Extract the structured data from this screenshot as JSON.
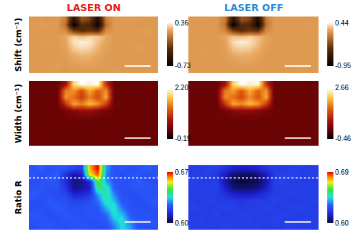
{
  "chart_data": [
    {
      "type": "heatmap",
      "title": "LASER ON",
      "ylabel": "Shift (cm⁻¹)",
      "tick_labels": false,
      "colorbar": {
        "range": [
          -0.73,
          0.36
        ],
        "ticks": [
          -0.73,
          0.36
        ]
      },
      "cells": [
        [
          0.15,
          0.15,
          0.14,
          0.15,
          0.05,
          -0.55,
          -0.1,
          -0.2,
          -0.6,
          0.05,
          0.15,
          0.15,
          0.16,
          0.15,
          0.15,
          0.15
        ],
        [
          0.15,
          0.16,
          0.15,
          0.15,
          0.0,
          -0.73,
          -0.3,
          -0.35,
          -0.7,
          0.0,
          0.15,
          0.15,
          0.15,
          0.14,
          0.15,
          0.15
        ],
        [
          0.15,
          0.15,
          0.15,
          0.14,
          0.1,
          -0.2,
          -0.3,
          -0.25,
          -0.3,
          0.1,
          0.15,
          0.15,
          0.15,
          0.15,
          0.16,
          0.15
        ],
        [
          0.15,
          0.15,
          0.15,
          0.15,
          0.2,
          0.3,
          0.25,
          0.3,
          0.28,
          0.2,
          0.15,
          0.15,
          0.15,
          0.15,
          0.15,
          0.15
        ],
        [
          0.15,
          0.15,
          0.16,
          0.15,
          0.18,
          0.33,
          0.36,
          0.34,
          0.25,
          0.18,
          0.15,
          0.15,
          0.15,
          0.15,
          0.15,
          0.15
        ],
        [
          0.15,
          0.15,
          0.15,
          0.15,
          0.17,
          0.28,
          0.32,
          0.3,
          0.22,
          0.17,
          0.15,
          0.15,
          0.15,
          0.16,
          0.15,
          0.15
        ],
        [
          0.15,
          0.14,
          0.15,
          0.15,
          0.16,
          0.22,
          0.25,
          0.24,
          0.2,
          0.16,
          0.15,
          0.15,
          0.15,
          0.15,
          0.15,
          0.15
        ],
        [
          0.15,
          0.15,
          0.15,
          0.15,
          0.15,
          0.18,
          0.2,
          0.2,
          0.17,
          0.15,
          0.15,
          0.15,
          0.15,
          0.15,
          0.15,
          0.15
        ],
        [
          0.15,
          0.15,
          0.15,
          0.16,
          0.15,
          0.16,
          0.17,
          0.17,
          0.16,
          0.15,
          0.15,
          0.15,
          0.15,
          0.15,
          0.14,
          0.15
        ],
        [
          0.15,
          0.15,
          0.15,
          0.15,
          0.14,
          0.15,
          0.15,
          0.15,
          0.15,
          0.15,
          0.16,
          0.15,
          0.15,
          0.15,
          0.15,
          0.15
        ]
      ]
    },
    {
      "type": "heatmap",
      "title": "LASER OFF",
      "tick_labels": false,
      "colorbar": {
        "range": [
          -0.95,
          0.44
        ],
        "ticks": [
          -0.95,
          0.44
        ]
      },
      "cells": [
        [
          0.17,
          0.17,
          0.17,
          0.17,
          0.05,
          -0.7,
          -0.15,
          -0.25,
          -0.8,
          0.05,
          0.17,
          0.17,
          0.16,
          0.17,
          0.17,
          0.17
        ],
        [
          0.17,
          0.16,
          0.17,
          0.17,
          0.0,
          -0.95,
          -0.4,
          -0.45,
          -0.9,
          0.0,
          0.17,
          0.17,
          0.17,
          0.17,
          0.18,
          0.17
        ],
        [
          0.17,
          0.17,
          0.17,
          0.18,
          0.1,
          -0.25,
          -0.4,
          -0.3,
          -0.35,
          0.1,
          0.17,
          0.17,
          0.17,
          0.17,
          0.17,
          0.17
        ],
        [
          0.17,
          0.17,
          0.17,
          0.17,
          0.22,
          0.32,
          0.3,
          0.35,
          0.3,
          0.22,
          0.17,
          0.17,
          0.17,
          0.16,
          0.17,
          0.17
        ],
        [
          0.17,
          0.17,
          0.16,
          0.17,
          0.2,
          0.38,
          0.44,
          0.4,
          0.3,
          0.2,
          0.17,
          0.17,
          0.17,
          0.17,
          0.17,
          0.17
        ],
        [
          0.17,
          0.17,
          0.17,
          0.17,
          0.19,
          0.32,
          0.36,
          0.34,
          0.26,
          0.19,
          0.17,
          0.17,
          0.18,
          0.17,
          0.17,
          0.17
        ],
        [
          0.17,
          0.18,
          0.17,
          0.17,
          0.18,
          0.25,
          0.28,
          0.27,
          0.22,
          0.18,
          0.17,
          0.17,
          0.17,
          0.17,
          0.17,
          0.17
        ],
        [
          0.17,
          0.17,
          0.17,
          0.17,
          0.17,
          0.2,
          0.22,
          0.22,
          0.19,
          0.17,
          0.17,
          0.17,
          0.17,
          0.17,
          0.17,
          0.17
        ],
        [
          0.17,
          0.17,
          0.17,
          0.16,
          0.17,
          0.18,
          0.19,
          0.19,
          0.18,
          0.17,
          0.17,
          0.17,
          0.17,
          0.17,
          0.18,
          0.17
        ],
        [
          0.17,
          0.17,
          0.17,
          0.17,
          0.17,
          0.17,
          0.17,
          0.17,
          0.17,
          0.17,
          0.16,
          0.17,
          0.17,
          0.17,
          0.17,
          0.17
        ]
      ]
    },
    {
      "type": "heatmap",
      "ylabel": "Width (cm⁻¹)",
      "tick_labels": false,
      "colorbar": {
        "range": [
          -0.19,
          2.2
        ],
        "ticks": [
          -0.19,
          {
            "value": 2.2,
            "label": "2.20"
          }
        ]
      },
      "cells": [
        [
          0.28,
          0.28,
          0.27,
          0.28,
          0.6,
          1.9,
          2.2,
          2.1,
          2.2,
          0.9,
          0.28,
          0.28,
          0.28,
          0.28,
          0.29,
          0.28
        ],
        [
          0.28,
          0.29,
          0.28,
          0.28,
          1.4,
          1.5,
          1.1,
          1.6,
          1.2,
          1.5,
          0.28,
          0.28,
          0.28,
          0.27,
          0.28,
          0.28
        ],
        [
          0.28,
          0.28,
          0.28,
          0.27,
          1.5,
          1.3,
          1.0,
          1.4,
          1.1,
          1.6,
          0.28,
          0.28,
          0.28,
          0.28,
          0.28,
          0.28
        ],
        [
          0.28,
          0.28,
          0.28,
          0.28,
          0.9,
          1.6,
          1.4,
          1.7,
          1.5,
          1.0,
          0.28,
          0.29,
          0.28,
          0.28,
          0.28,
          0.28
        ],
        [
          0.28,
          0.27,
          0.28,
          0.28,
          0.35,
          0.5,
          0.6,
          0.6,
          0.5,
          0.35,
          0.28,
          0.28,
          0.28,
          0.28,
          0.28,
          0.28
        ],
        [
          0.28,
          0.28,
          0.28,
          0.28,
          0.3,
          0.32,
          0.35,
          0.35,
          0.32,
          0.3,
          0.28,
          0.28,
          0.28,
          0.28,
          0.27,
          0.28
        ],
        [
          0.28,
          0.28,
          0.29,
          0.28,
          0.28,
          0.28,
          0.28,
          0.28,
          0.28,
          0.28,
          0.28,
          0.28,
          0.28,
          0.28,
          0.28,
          0.28
        ],
        [
          0.28,
          0.28,
          0.28,
          0.28,
          0.28,
          0.27,
          0.28,
          0.28,
          0.28,
          0.28,
          0.28,
          0.28,
          0.29,
          0.28,
          0.28,
          0.28
        ],
        [
          0.28,
          0.28,
          0.28,
          0.27,
          0.28,
          0.28,
          0.28,
          0.28,
          0.28,
          0.29,
          0.28,
          0.28,
          0.28,
          0.28,
          0.28,
          0.28
        ],
        [
          0.28,
          0.28,
          0.28,
          0.28,
          0.28,
          0.28,
          0.28,
          0.27,
          0.28,
          0.28,
          0.28,
          0.28,
          0.28,
          0.28,
          0.28,
          0.28
        ]
      ]
    },
    {
      "type": "heatmap",
      "tick_labels": false,
      "colorbar": {
        "range": [
          -0.46,
          2.66
        ],
        "ticks": [
          -0.46,
          2.66
        ]
      },
      "cells": [
        [
          0.16,
          0.16,
          0.17,
          0.16,
          0.6,
          2.2,
          2.66,
          2.5,
          2.6,
          1.0,
          0.16,
          0.16,
          0.16,
          0.16,
          0.15,
          0.16
        ],
        [
          0.16,
          0.15,
          0.16,
          0.16,
          1.6,
          1.8,
          1.3,
          1.9,
          1.4,
          1.8,
          0.16,
          0.16,
          0.16,
          0.17,
          0.16,
          0.16
        ],
        [
          0.16,
          0.16,
          0.16,
          0.17,
          1.7,
          1.5,
          1.2,
          1.7,
          1.3,
          1.9,
          0.16,
          0.16,
          0.16,
          0.16,
          0.16,
          0.16
        ],
        [
          0.16,
          0.16,
          0.16,
          0.16,
          1.0,
          1.9,
          1.7,
          2.0,
          1.8,
          1.1,
          0.16,
          0.15,
          0.16,
          0.16,
          0.16,
          0.16
        ],
        [
          0.16,
          0.17,
          0.16,
          0.16,
          0.25,
          0.4,
          0.5,
          0.5,
          0.4,
          0.25,
          0.16,
          0.16,
          0.16,
          0.16,
          0.16,
          0.16
        ],
        [
          0.16,
          0.16,
          0.16,
          0.16,
          0.18,
          0.2,
          0.22,
          0.22,
          0.2,
          0.18,
          0.16,
          0.16,
          0.16,
          0.16,
          0.17,
          0.16
        ],
        [
          0.16,
          0.16,
          0.15,
          0.16,
          0.16,
          0.16,
          0.16,
          0.16,
          0.16,
          0.16,
          0.16,
          0.16,
          0.16,
          0.16,
          0.16,
          0.16
        ],
        [
          0.16,
          0.16,
          0.16,
          0.16,
          0.16,
          0.17,
          0.16,
          0.16,
          0.16,
          0.16,
          0.16,
          0.16,
          0.15,
          0.16,
          0.16,
          0.16
        ],
        [
          0.16,
          0.16,
          0.16,
          0.17,
          0.16,
          0.16,
          0.16,
          0.16,
          0.16,
          0.15,
          0.16,
          0.16,
          0.16,
          0.16,
          0.16,
          0.16
        ],
        [
          0.16,
          0.16,
          0.16,
          0.16,
          0.16,
          0.16,
          0.16,
          0.17,
          0.16,
          0.16,
          0.16,
          0.16,
          0.16,
          0.16,
          0.16,
          0.16
        ]
      ]
    },
    {
      "type": "heatmap",
      "ylabel": "Ratio R",
      "tick_labels": false,
      "colorbar": {
        "range": [
          0.6,
          0.67
        ],
        "ticks": [
          {
            "value": 0.6,
            "label": "0.60"
          },
          0.67
        ]
      },
      "cells": [
        [
          0.622,
          0.624,
          0.621,
          0.623,
          0.622,
          0.62,
          0.618,
          0.66,
          0.67,
          0.63,
          0.622,
          0.623,
          0.621,
          0.622,
          0.624,
          0.622
        ],
        [
          0.623,
          0.621,
          0.622,
          0.624,
          0.615,
          0.607,
          0.61,
          0.655,
          0.665,
          0.628,
          0.622,
          0.621,
          0.623,
          0.622,
          0.621,
          0.623
        ],
        [
          0.621,
          0.622,
          0.623,
          0.622,
          0.614,
          0.605,
          0.606,
          0.612,
          0.648,
          0.63,
          0.623,
          0.622,
          0.622,
          0.624,
          0.622,
          0.621
        ],
        [
          0.622,
          0.623,
          0.621,
          0.622,
          0.616,
          0.606,
          0.607,
          0.61,
          0.642,
          0.638,
          0.624,
          0.621,
          0.622,
          0.623,
          0.622,
          0.622
        ],
        [
          0.624,
          0.622,
          0.622,
          0.621,
          0.62,
          0.612,
          0.613,
          0.616,
          0.63,
          0.64,
          0.628,
          0.622,
          0.621,
          0.622,
          0.623,
          0.622
        ],
        [
          0.622,
          0.621,
          0.623,
          0.622,
          0.622,
          0.619,
          0.62,
          0.621,
          0.626,
          0.638,
          0.632,
          0.623,
          0.622,
          0.621,
          0.622,
          0.624
        ],
        [
          0.621,
          0.622,
          0.622,
          0.624,
          0.622,
          0.621,
          0.622,
          0.622,
          0.623,
          0.632,
          0.637,
          0.626,
          0.622,
          0.622,
          0.621,
          0.622
        ],
        [
          0.623,
          0.622,
          0.621,
          0.622,
          0.623,
          0.622,
          0.621,
          0.623,
          0.622,
          0.626,
          0.636,
          0.632,
          0.623,
          0.622,
          0.622,
          0.621
        ],
        [
          0.622,
          0.623,
          0.622,
          0.621,
          0.622,
          0.623,
          0.622,
          0.621,
          0.622,
          0.623,
          0.632,
          0.636,
          0.626,
          0.622,
          0.623,
          0.622
        ],
        [
          0.621,
          0.622,
          0.623,
          0.622,
          0.621,
          0.622,
          0.623,
          0.622,
          0.621,
          0.622,
          0.627,
          0.635,
          0.63,
          0.622,
          0.621,
          0.622
        ]
      ]
    },
    {
      "type": "heatmap",
      "tick_labels": false,
      "colorbar": {
        "range": [
          0.6,
          0.69
        ],
        "ticks": [
          {
            "value": 0.6,
            "label": "0.60"
          },
          0.69
        ]
      },
      "cells": [
        [
          0.623,
          0.622,
          0.624,
          0.623,
          0.62,
          0.615,
          0.613,
          0.614,
          0.616,
          0.62,
          0.623,
          0.622,
          0.623,
          0.624,
          0.622,
          0.623
        ],
        [
          0.622,
          0.623,
          0.623,
          0.621,
          0.612,
          0.604,
          0.603,
          0.602,
          0.605,
          0.612,
          0.622,
          0.623,
          0.624,
          0.623,
          0.623,
          0.622
        ],
        [
          0.624,
          0.623,
          0.622,
          0.623,
          0.61,
          0.602,
          0.6,
          0.601,
          0.603,
          0.61,
          0.623,
          0.624,
          0.622,
          0.623,
          0.622,
          0.623
        ],
        [
          0.623,
          0.622,
          0.623,
          0.624,
          0.614,
          0.606,
          0.604,
          0.605,
          0.607,
          0.614,
          0.622,
          0.623,
          0.623,
          0.622,
          0.624,
          0.623
        ],
        [
          0.622,
          0.624,
          0.623,
          0.622,
          0.62,
          0.615,
          0.613,
          0.614,
          0.616,
          0.62,
          0.623,
          0.622,
          0.624,
          0.623,
          0.622,
          0.623
        ],
        [
          0.623,
          0.622,
          0.624,
          0.623,
          0.622,
          0.622,
          0.621,
          0.622,
          0.623,
          0.622,
          0.624,
          0.623,
          0.622,
          0.622,
          0.623,
          0.624
        ],
        [
          0.624,
          0.623,
          0.622,
          0.623,
          0.624,
          0.623,
          0.622,
          0.623,
          0.622,
          0.624,
          0.623,
          0.622,
          0.623,
          0.624,
          0.623,
          0.622
        ],
        [
          0.622,
          0.623,
          0.623,
          0.624,
          0.622,
          0.623,
          0.624,
          0.622,
          0.623,
          0.623,
          0.622,
          0.624,
          0.623,
          0.622,
          0.623,
          0.623
        ],
        [
          0.623,
          0.624,
          0.622,
          0.623,
          0.623,
          0.622,
          0.623,
          0.624,
          0.622,
          0.623,
          0.624,
          0.623,
          0.622,
          0.623,
          0.624,
          0.622
        ],
        [
          0.623,
          0.622,
          0.623,
          0.622,
          0.624,
          0.623,
          0.622,
          0.623,
          0.624,
          0.622,
          0.623,
          0.622,
          0.624,
          0.623,
          0.622,
          0.623
        ]
      ]
    }
  ]
}
